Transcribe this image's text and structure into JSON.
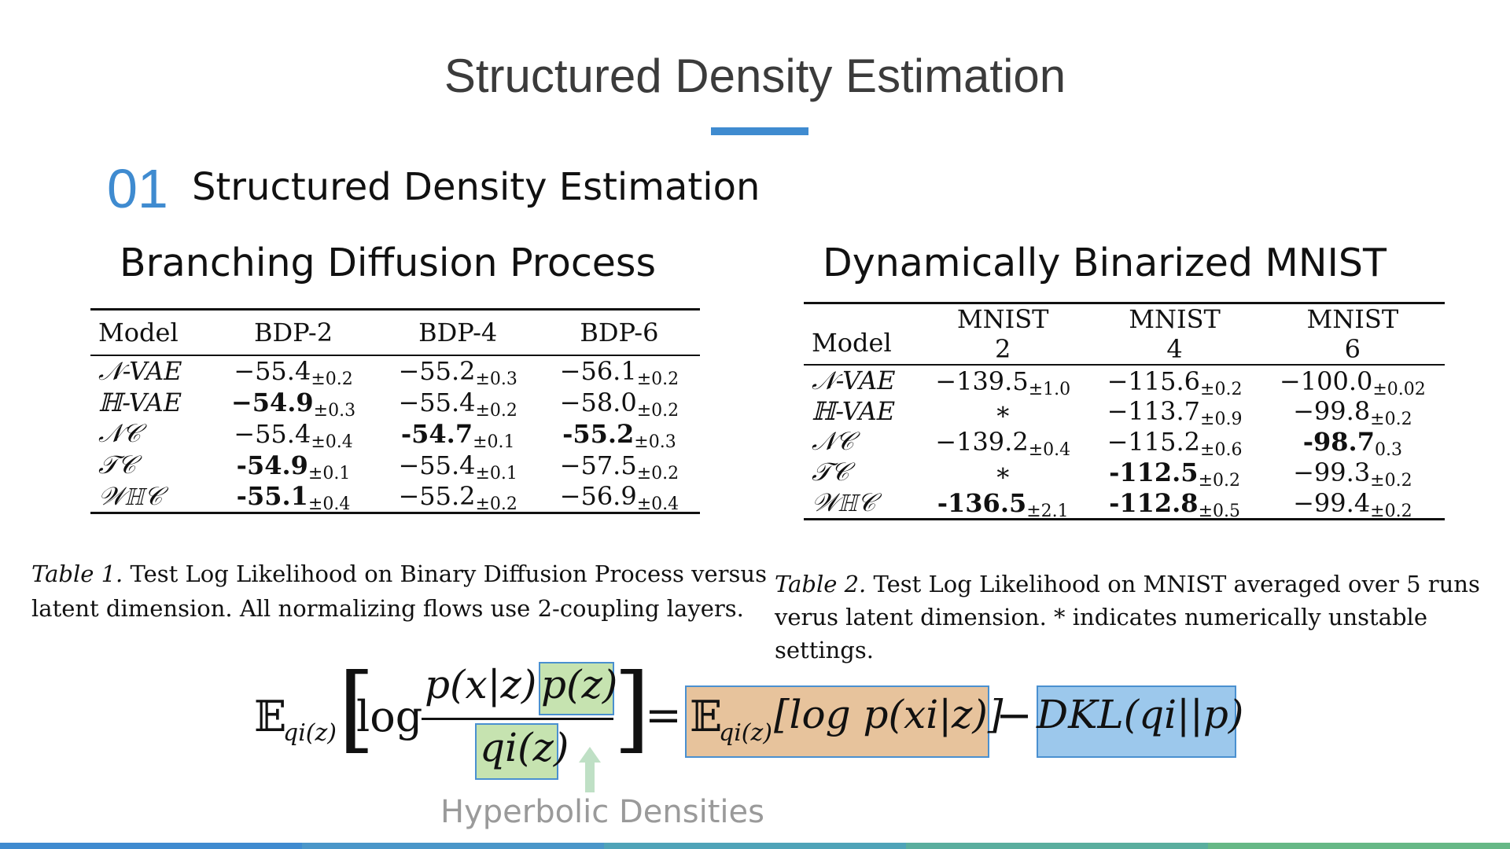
{
  "slide": {
    "title": "Structured Density Estimation",
    "section_number": "01",
    "section_title": "Structured Density Estimation",
    "accent_color": "#3f8bd0"
  },
  "left": {
    "subtitle": "Branching Diffusion Process",
    "table": {
      "headers": [
        "Model",
        "BDP-2",
        "BDP-4",
        "BDP-6"
      ],
      "rows": [
        {
          "model": "𝒩-VAE",
          "cells": [
            [
              "−55.4",
              "±0.2",
              false
            ],
            [
              "−55.2",
              "±0.3",
              false
            ],
            [
              "−56.1",
              "±0.2",
              false
            ]
          ]
        },
        {
          "model": "ℍ-VAE",
          "cells": [
            [
              "−54.9",
              "±0.3",
              true
            ],
            [
              "−55.4",
              "±0.2",
              false
            ],
            [
              "−58.0",
              "±0.2",
              false
            ]
          ]
        },
        {
          "model": "𝒩𝒞",
          "cells": [
            [
              "−55.4",
              "±0.4",
              false
            ],
            [
              "-54.7",
              "±0.1",
              true
            ],
            [
              "-55.2",
              "±0.3",
              true
            ]
          ]
        },
        {
          "model": "𝒯𝒞",
          "cells": [
            [
              "-54.9",
              "±0.1",
              true
            ],
            [
              "−55.4",
              "±0.1",
              false
            ],
            [
              "−57.5",
              "±0.2",
              false
            ]
          ]
        },
        {
          "model": "𝒲ℍ𝒞",
          "cells": [
            [
              "-55.1",
              "±0.4",
              true
            ],
            [
              "−55.2",
              "±0.2",
              false
            ],
            [
              "−56.9",
              "±0.4",
              false
            ]
          ]
        }
      ]
    },
    "caption_label": "Table 1.",
    "caption_line1": "Test Log Likelihood on Binary Diffusion Process versus",
    "caption_line2": "latent dimension. All normalizing flows use 2-coupling layers."
  },
  "right": {
    "subtitle": "Dynamically Binarized MNIST",
    "table": {
      "model_header": "Model",
      "headers_top": [
        "MNIST",
        "MNIST",
        "MNIST"
      ],
      "headers_bottom": [
        "2",
        "4",
        "6"
      ],
      "rows": [
        {
          "model": "𝒩-VAE",
          "cells": [
            [
              "−139.5",
              "±1.0",
              false
            ],
            [
              "−115.6",
              "±0.2",
              false
            ],
            [
              "−100.0",
              "±0.02",
              false
            ]
          ]
        },
        {
          "model": "ℍ-VAE",
          "cells": [
            [
              "∗",
              "",
              false
            ],
            [
              "−113.7",
              "±0.9",
              false
            ],
            [
              "−99.8",
              "±0.2",
              false
            ]
          ]
        },
        {
          "model": "𝒩𝒞",
          "cells": [
            [
              "−139.2",
              "±0.4",
              false
            ],
            [
              "−115.2",
              "±0.6",
              false
            ],
            [
              "-98.7",
              "0.3",
              true
            ]
          ]
        },
        {
          "model": "𝒯𝒞",
          "cells": [
            [
              "∗",
              "",
              false
            ],
            [
              "-112.5",
              "±0.2",
              true
            ],
            [
              "−99.3",
              "±0.2",
              false
            ]
          ]
        },
        {
          "model": "𝒲ℍ𝒞",
          "cells": [
            [
              "-136.5",
              "±2.1",
              true
            ],
            [
              "-112.8",
              "±0.5",
              true
            ],
            [
              "−99.4",
              "±0.2",
              false
            ]
          ]
        }
      ]
    },
    "caption_label": "Table 2.",
    "caption_line1": "Test Log Likelihood on MNIST averaged over 5 runs",
    "caption_line2": "verus latent dimension. * indicates numerically unstable settings."
  },
  "equation": {
    "expectation": "𝔼",
    "expectation_sub": "qi(z)",
    "log": "log",
    "numerator_a": "p(x|z)",
    "numerator_b": "p(z)",
    "denominator": "qi(z)",
    "equals": "=",
    "rhs_term1": "𝔼",
    "rhs_term1_sub": "qi(z)",
    "rhs_term1_body": "[log p(xi|z)]",
    "minus": "−",
    "rhs_term2": "DKL(qi||p)",
    "green_color": "#c6e3b0",
    "orange_color": "#e7c39c",
    "blue_color": "#9cc8ec"
  },
  "annotation": {
    "label": "Hyperbolic Densities",
    "arrow": "up-arrow-icon"
  },
  "bottom_bar_colors": [
    "#3f8bd0",
    "#4a96c9",
    "#4fa3b8",
    "#5aae9e",
    "#66b886"
  ]
}
